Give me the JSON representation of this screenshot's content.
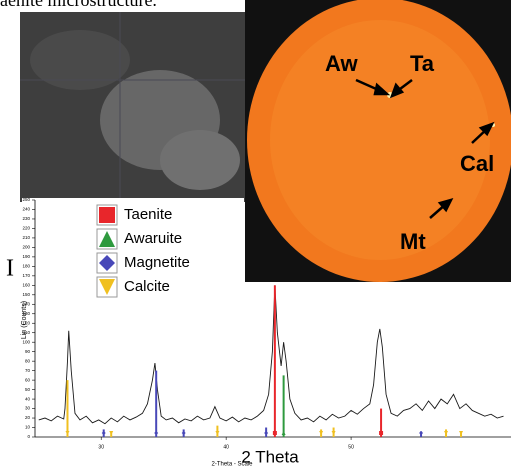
{
  "caption": "aenite microstructure.",
  "diffraction_labels": [
    "Aw",
    "Ta",
    "Cal",
    "Mt"
  ],
  "intensity_symbol": "I",
  "chart_data": {
    "type": "line",
    "ylabel": "Lin (Counts)",
    "xlabel": "2 Theta",
    "xlabel_small": "2-Theta - Scale",
    "x": [
      25,
      25.5,
      26,
      26.5,
      27,
      27.1,
      27.3,
      27.4,
      27.6,
      27.9,
      28.3,
      28.8,
      29.3,
      29.8,
      30.3,
      30.8,
      31.3,
      31.8,
      32.3,
      32.8,
      33.3,
      33.7,
      34.1,
      34.3,
      34.5,
      34.8,
      35.2,
      35.7,
      36.2,
      36.7,
      37.2,
      37.7,
      38.2,
      38.7,
      39.1,
      39.5,
      40,
      40.5,
      41,
      41.5,
      42,
      42.5,
      43,
      43.4,
      43.7,
      43.9,
      44.1,
      44.4,
      44.6,
      44.8,
      45.1,
      45.5,
      46,
      46.5,
      47,
      47.5,
      48,
      48.5,
      49,
      49.5,
      50,
      50.5,
      51,
      51.5,
      51.8,
      52.1,
      52.3,
      52.5,
      52.8,
      53.2,
      53.7,
      54.2,
      54.7,
      55.2,
      55.7,
      56.2,
      56.7,
      57.2,
      57.7,
      58.2,
      58.7,
      59.2,
      59.7,
      60.2,
      60.7,
      61.2,
      61.7,
      62.2
    ],
    "values": [
      18,
      20,
      17,
      22,
      19,
      30,
      80,
      112,
      70,
      25,
      18,
      22,
      15,
      18,
      14,
      20,
      16,
      22,
      18,
      21,
      25,
      35,
      60,
      78,
      50,
      22,
      18,
      20,
      15,
      19,
      17,
      22,
      18,
      20,
      32,
      20,
      17,
      21,
      16,
      20,
      18,
      22,
      28,
      45,
      90,
      160,
      110,
      75,
      100,
      80,
      40,
      25,
      18,
      20,
      16,
      22,
      18,
      24,
      20,
      22,
      28,
      24,
      30,
      35,
      55,
      100,
      114,
      95,
      45,
      25,
      22,
      28,
      30,
      35,
      28,
      38,
      30,
      40,
      35,
      45,
      30,
      35,
      28,
      25,
      22,
      24,
      20,
      22
    ],
    "color": "#1a1a1a",
    "xlim": [
      24.7,
      62.8
    ],
    "xticks": [
      30,
      40,
      50
    ],
    "ylim": [
      0,
      250
    ],
    "yticks": [
      0,
      10,
      20,
      30,
      40,
      50,
      60,
      70,
      80,
      90,
      100,
      110,
      120,
      130,
      140,
      150,
      160,
      170,
      180,
      190,
      200,
      210,
      220,
      230,
      240,
      250
    ],
    "phases": [
      {
        "name": "Taenite",
        "color": "#e8262b",
        "marker": "square",
        "positions": [
          43.9,
          52.4
        ],
        "intensities": [
          160,
          30
        ]
      },
      {
        "name": "Awaruite",
        "color": "#2e9a3e",
        "marker": "triangle-up",
        "positions": [
          44.6
        ],
        "intensities": [
          65
        ]
      },
      {
        "name": "Magnetite",
        "color": "#4848b8",
        "marker": "diamond",
        "positions": [
          34.4,
          30.2,
          36.6,
          43.2,
          55.6
        ],
        "intensities": [
          70,
          8,
          8,
          10,
          6
        ]
      },
      {
        "name": "Calcite",
        "color": "#f0c020",
        "marker": "triangle-down",
        "positions": [
          27.3,
          30.8,
          39.3,
          47.6,
          48.6,
          57.6,
          58.8
        ],
        "intensities": [
          60,
          6,
          12,
          8,
          10,
          8,
          6
        ]
      }
    ]
  }
}
